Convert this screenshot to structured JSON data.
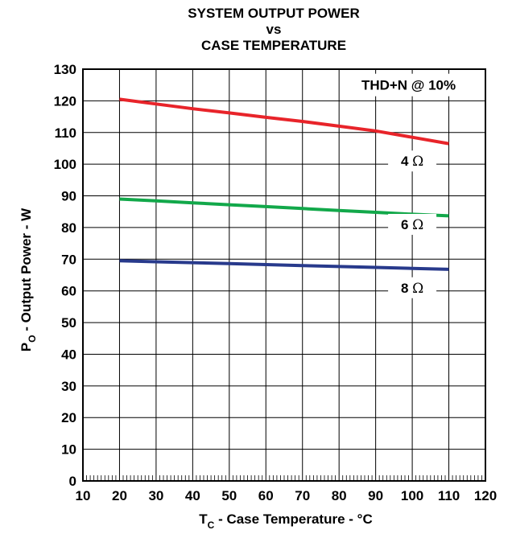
{
  "chart_data": {
    "type": "line",
    "title_lines": [
      "SYSTEM OUTPUT POWER",
      "vs",
      "CASE TEMPERATURE"
    ],
    "xlabel": {
      "main": "T",
      "sub": "C",
      "rest": " - Case Temperature - °C"
    },
    "ylabel": {
      "main": "P",
      "sub": "O",
      "rest": " - Output Power - W"
    },
    "xlim": [
      10,
      120
    ],
    "ylim": [
      0,
      130
    ],
    "xticks": [
      10,
      20,
      30,
      40,
      50,
      60,
      70,
      80,
      90,
      100,
      110,
      120
    ],
    "yticks": [
      0,
      10,
      20,
      30,
      40,
      50,
      60,
      70,
      80,
      90,
      100,
      110,
      120,
      130
    ],
    "grid": true,
    "annotation": "THD+N @ 10%",
    "series": [
      {
        "name": "4 Ω",
        "label_num": "4",
        "label_unit": "Ω",
        "color": "#e8242a",
        "x": [
          20,
          30,
          40,
          50,
          60,
          70,
          80,
          90,
          100,
          110
        ],
        "y": [
          120.5,
          119,
          117.5,
          116.2,
          114.8,
          113.5,
          112,
          110.5,
          108.5,
          106.5
        ]
      },
      {
        "name": "6 Ω",
        "label_num": "6",
        "label_unit": "Ω",
        "color": "#12a84a",
        "x": [
          20,
          30,
          40,
          50,
          60,
          70,
          80,
          90,
          100,
          110
        ],
        "y": [
          89,
          88.4,
          87.8,
          87.2,
          86.6,
          86,
          85.4,
          84.8,
          84.2,
          83.7
        ]
      },
      {
        "name": "8 Ω",
        "label_num": "8",
        "label_unit": "Ω",
        "color": "#283a8c",
        "x": [
          20,
          30,
          40,
          50,
          60,
          70,
          80,
          90,
          100,
          110
        ],
        "y": [
          69.5,
          69.2,
          68.9,
          68.6,
          68.3,
          68,
          67.7,
          67.4,
          67.1,
          66.8
        ]
      }
    ]
  }
}
